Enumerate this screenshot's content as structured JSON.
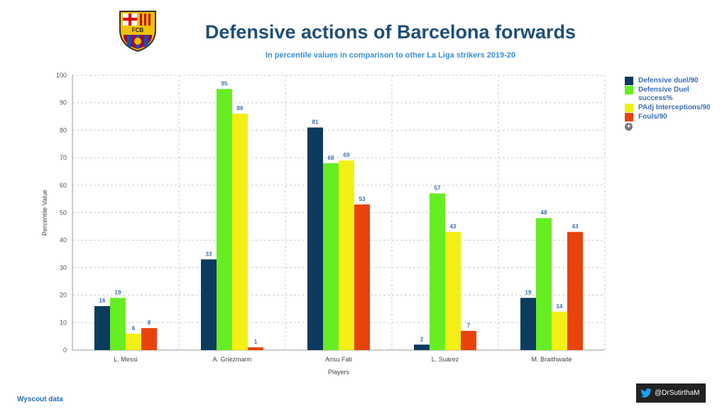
{
  "title": "Defensive actions of Barcelona forwards",
  "subtitle": "In percentile values in comparison to other La Liga strikers 2019-20",
  "logo_text": "FCB",
  "source": "Wyscout data",
  "twitter_handle": "@DrSutirthaM",
  "chart_data": {
    "type": "bar",
    "title": "Defensive actions of Barcelona forwards",
    "xlabel": "Players",
    "ylabel": "Percentile Value",
    "ylim": [
      0,
      100
    ],
    "yticks": [
      0,
      10,
      20,
      30,
      40,
      50,
      60,
      70,
      80,
      90,
      100
    ],
    "grid": true,
    "legend": "right",
    "categories": [
      "L. Messi",
      "A. Griezmann",
      "Ansu Fati",
      "L. Suárez",
      "M. Braithwaite"
    ],
    "series": [
      {
        "name": "Defensive duel/90",
        "color": "#0d3b5e",
        "values": [
          16,
          33,
          81,
          2,
          19
        ]
      },
      {
        "name": "Defensive Duel success%",
        "color": "#66ee22",
        "values": [
          19,
          95,
          68,
          57,
          48
        ]
      },
      {
        "name": "PAdj Interceptions/90",
        "color": "#f2ef14",
        "values": [
          6,
          86,
          69,
          43,
          14
        ]
      },
      {
        "name": "Fouls/90",
        "color": "#e8430c",
        "values": [
          8,
          1,
          53,
          7,
          43
        ]
      }
    ]
  }
}
